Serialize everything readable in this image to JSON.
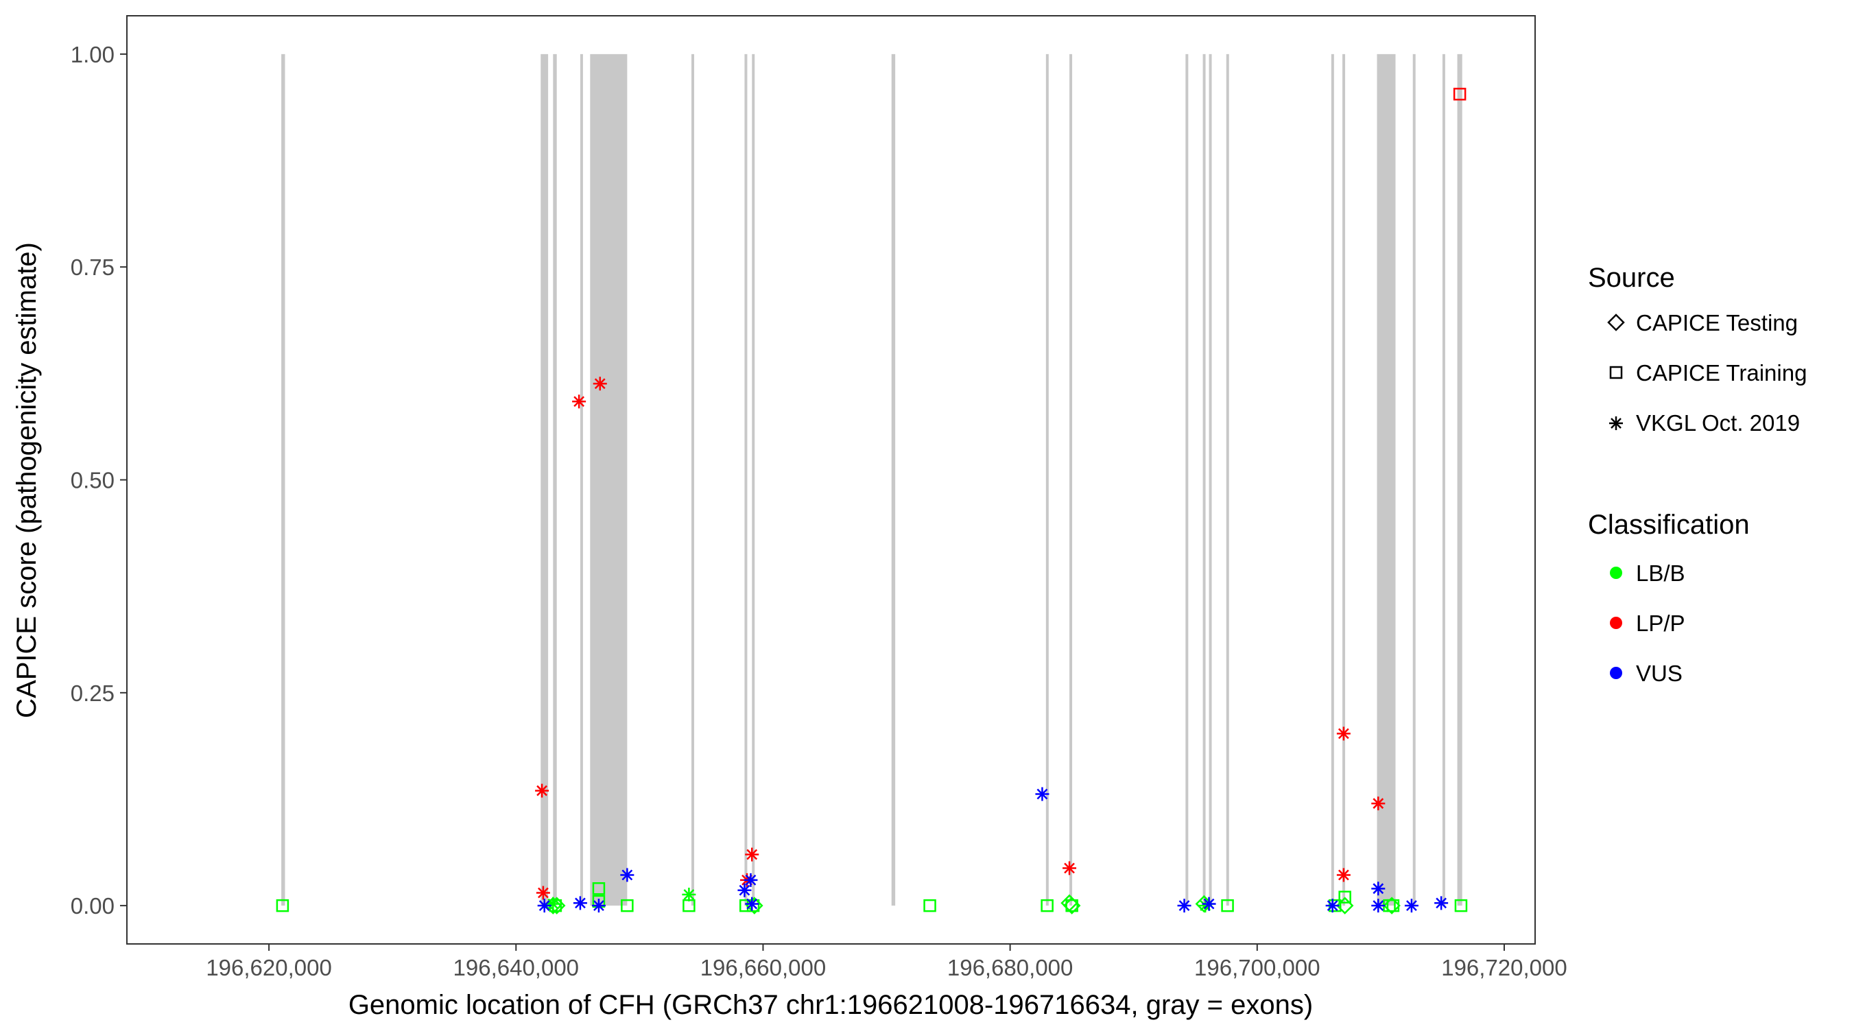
{
  "chart_data": {
    "type": "scatter",
    "title": "",
    "xlabel": "Genomic location of CFH (GRCh37 chr1:196621008-196716634, gray = exons)",
    "ylabel": "CAPICE score (pathogenicity estimate)",
    "xlim": [
      196608500,
      196722500
    ],
    "ylim": [
      -0.045,
      1.045
    ],
    "xticks": [
      196620000,
      196640000,
      196660000,
      196680000,
      196700000,
      196720000
    ],
    "xtick_labels": [
      "196,620,000",
      "196,640,000",
      "196,660,000",
      "196,680,000",
      "196,700,000",
      "196,720,000"
    ],
    "yticks": [
      0,
      0.25,
      0.5,
      0.75,
      1.0
    ],
    "ytick_labels": [
      "0.00",
      "0.25",
      "0.50",
      "0.75",
      "1.00"
    ],
    "grid": false,
    "legend_position": "right",
    "exons": [
      [
        196621000,
        196621300
      ],
      [
        196642000,
        196642600
      ],
      [
        196643000,
        196643300
      ],
      [
        196645200,
        196645400
      ],
      [
        196646000,
        196649000
      ],
      [
        196654200,
        196654400
      ],
      [
        196658500,
        196658700
      ],
      [
        196659100,
        196659300
      ],
      [
        196670400,
        196670700
      ],
      [
        196682900,
        196683100
      ],
      [
        196684800,
        196685000
      ],
      [
        196694200,
        196694400
      ],
      [
        196695600,
        196695800
      ],
      [
        196696100,
        196696300
      ],
      [
        196697500,
        196697700
      ],
      [
        196706000,
        196706200
      ],
      [
        196706900,
        196707100
      ],
      [
        196709700,
        196711200
      ],
      [
        196712600,
        196712800
      ],
      [
        196715000,
        196715200
      ],
      [
        196716200,
        196716600
      ]
    ],
    "legend": {
      "source_title": "Source",
      "source_items": [
        {
          "label": "CAPICE Testing",
          "shape": "diamond"
        },
        {
          "label": "CAPICE Training",
          "shape": "square"
        },
        {
          "label": "VKGL Oct. 2019",
          "shape": "asterisk"
        }
      ],
      "class_title": "Classification",
      "class_items": [
        {
          "label": "LB/B",
          "color": "#00ff00"
        },
        {
          "label": "LP/P",
          "color": "#ff0000"
        },
        {
          "label": "VUS",
          "color": "#0000ff"
        }
      ]
    },
    "series": [
      {
        "source": "CAPICE Training",
        "classification": "LB/B",
        "points": [
          [
            196621100,
            0.0
          ],
          [
            196643200,
            0.0
          ],
          [
            196646700,
            0.005
          ],
          [
            196646700,
            0.02
          ],
          [
            196649000,
            0.0
          ],
          [
            196654000,
            0.0
          ],
          [
            196658600,
            0.0
          ],
          [
            196659200,
            0.0
          ],
          [
            196673500,
            0.0
          ],
          [
            196683000,
            0.0
          ],
          [
            196685000,
            0.0
          ],
          [
            196697600,
            0.0
          ],
          [
            196706300,
            0.0
          ],
          [
            196707100,
            0.01
          ],
          [
            196710700,
            0.0
          ],
          [
            196711000,
            0.0
          ],
          [
            196716500,
            0.0
          ]
        ]
      },
      {
        "source": "CAPICE Training",
        "classification": "LP/P",
        "points": [
          [
            196716400,
            0.953
          ]
        ]
      },
      {
        "source": "CAPICE Testing",
        "classification": "LB/B",
        "points": [
          [
            196643000,
            0.0
          ],
          [
            196643300,
            0.0
          ],
          [
            196659300,
            0.0
          ],
          [
            196684800,
            0.003
          ],
          [
            196685000,
            0.0
          ],
          [
            196695700,
            0.002
          ],
          [
            196707100,
            0.0
          ],
          [
            196710900,
            0.0
          ]
        ]
      },
      {
        "source": "VKGL Oct. 2019",
        "classification": "LB/B",
        "points": [
          [
            196643000,
            0.002
          ],
          [
            196654000,
            0.013
          ],
          [
            196695800,
            0.0
          ]
        ]
      },
      {
        "source": "VKGL Oct. 2019",
        "classification": "LP/P",
        "points": [
          [
            196642100,
            0.135
          ],
          [
            196642200,
            0.015
          ],
          [
            196645100,
            0.592
          ],
          [
            196646800,
            0.613
          ],
          [
            196658700,
            0.03
          ],
          [
            196659100,
            0.06
          ],
          [
            196684800,
            0.044
          ],
          [
            196707000,
            0.202
          ],
          [
            196707000,
            0.036
          ],
          [
            196709800,
            0.12
          ]
        ]
      },
      {
        "source": "VKGL Oct. 2019",
        "classification": "VUS",
        "points": [
          [
            196642300,
            0.0
          ],
          [
            196645200,
            0.003
          ],
          [
            196646700,
            0.0
          ],
          [
            196649000,
            0.036
          ],
          [
            196658500,
            0.018
          ],
          [
            196659000,
            0.03
          ],
          [
            196659100,
            0.002
          ],
          [
            196682600,
            0.131
          ],
          [
            196694100,
            0.0
          ],
          [
            196696100,
            0.002
          ],
          [
            196706100,
            0.0
          ],
          [
            196709800,
            0.02
          ],
          [
            196709800,
            0.0
          ],
          [
            196712500,
            0.0
          ],
          [
            196714900,
            0.003
          ]
        ]
      }
    ]
  }
}
